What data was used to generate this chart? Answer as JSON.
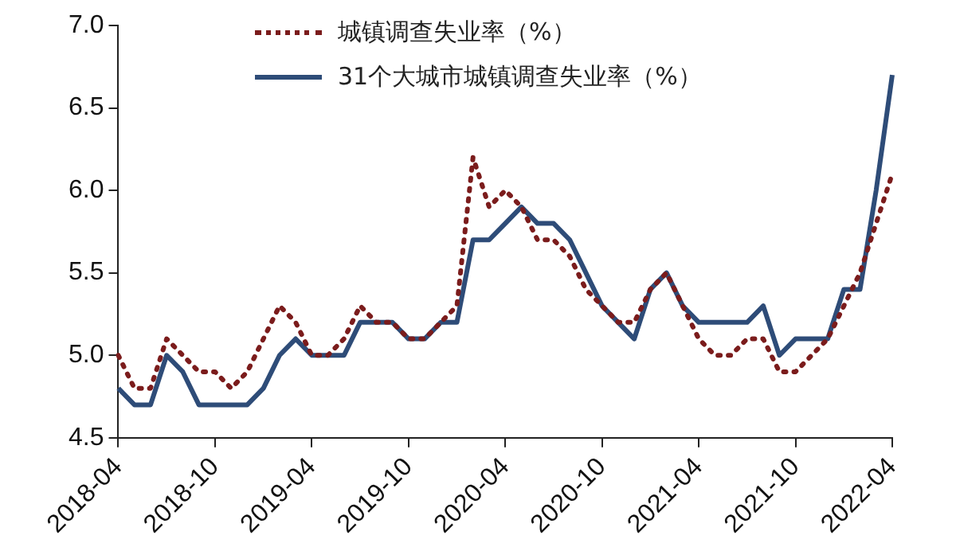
{
  "chart_data": {
    "type": "line",
    "categories": [
      "2018-04",
      null,
      null,
      null,
      null,
      null,
      "2018-10",
      null,
      null,
      null,
      null,
      null,
      "2019-04",
      null,
      null,
      null,
      null,
      null,
      "2019-10",
      null,
      null,
      null,
      null,
      null,
      "2020-04",
      null,
      null,
      null,
      null,
      null,
      "2020-10",
      null,
      null,
      null,
      null,
      null,
      "2021-04",
      null,
      null,
      null,
      null,
      null,
      "2021-10",
      null,
      null,
      null,
      null,
      null,
      "2022-04"
    ],
    "series": [
      {
        "name": "城镇调查失业率（%）",
        "color": "#7b1c1c",
        "line_style": "dotted",
        "values": [
          5.0,
          4.8,
          4.8,
          5.1,
          5.0,
          4.9,
          4.9,
          4.8,
          4.9,
          5.1,
          5.3,
          5.2,
          5.0,
          5.0,
          5.1,
          5.3,
          5.2,
          5.2,
          5.1,
          5.1,
          5.2,
          5.3,
          6.2,
          5.9,
          6.0,
          5.9,
          5.7,
          5.7,
          5.6,
          5.4,
          5.3,
          5.2,
          5.2,
          5.4,
          5.5,
          5.3,
          5.1,
          5.0,
          5.0,
          5.1,
          5.1,
          4.9,
          4.9,
          5.0,
          5.1,
          5.3,
          5.5,
          5.8,
          6.1
        ]
      },
      {
        "name": "31个大城市城镇调查失业率（%）",
        "color": "#2e4c78",
        "line_style": "solid",
        "values": [
          4.8,
          4.7,
          4.7,
          5.0,
          4.9,
          4.7,
          4.7,
          4.7,
          4.7,
          4.8,
          5.0,
          5.1,
          5.0,
          5.0,
          5.0,
          5.2,
          5.2,
          5.2,
          5.1,
          5.1,
          5.2,
          5.2,
          5.7,
          5.7,
          5.8,
          5.9,
          5.8,
          5.8,
          5.7,
          5.5,
          5.3,
          5.2,
          5.1,
          5.4,
          5.5,
          5.3,
          5.2,
          5.2,
          5.2,
          5.2,
          5.3,
          5.0,
          5.1,
          5.1,
          5.1,
          5.4,
          5.4,
          6.0,
          6.7
        ]
      }
    ],
    "ylim": [
      4.5,
      7.0
    ],
    "yticks": [
      {
        "value": 4.5,
        "label": "4.5"
      },
      {
        "value": 5.0,
        "label": "5.0"
      },
      {
        "value": 5.5,
        "label": "5.5"
      },
      {
        "value": 6.0,
        "label": "6.0"
      },
      {
        "value": 6.5,
        "label": "6.5"
      },
      {
        "value": 7.0,
        "label": "7.0"
      }
    ],
    "grid": false,
    "legend": "top",
    "marker": "none"
  }
}
